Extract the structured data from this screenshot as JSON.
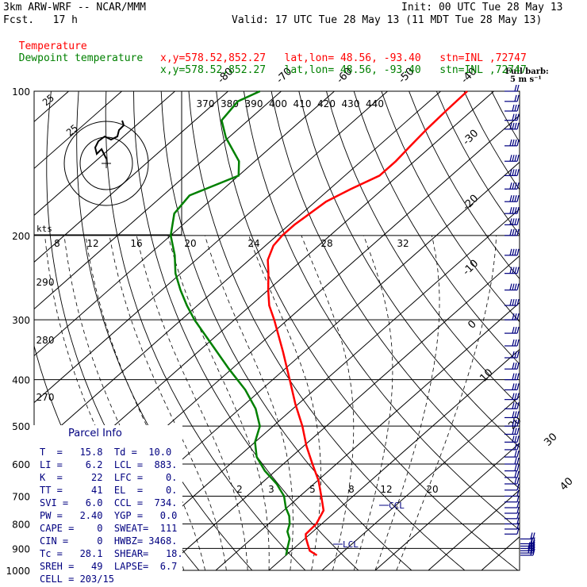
{
  "header": {
    "model": "3km ARW-WRF -- NCAR/MMM",
    "init": "Init: 00 UTC Tue 28 May 13",
    "fcst": "Fcst.   17 h",
    "valid": "Valid: 17 UTC Tue 28 May 13 (11 MDT Tue 28 May 13)",
    "temp_line": {
      "label": "Temperature",
      "info": "x,y=578.52,852.27   lat,lon= 48.56, -93.40   stn=INL ,72747"
    },
    "dew_line": {
      "label": "Dewpoint temperature",
      "info": "x,y=578.52,852.27   lat,lon= 48.56, -93.40   stn=INL ,72747"
    }
  },
  "colors": {
    "temperature": "#ff0000",
    "dewpoint": "#008000",
    "barbs": "#000080",
    "grid": "#000000",
    "lcl": "#000080"
  },
  "barb_legend": {
    "line1": "Full barb:",
    "line2": "5 m s⁻¹"
  },
  "parcel_info": {
    "title": "Parcel Info",
    "rows": [
      "T  =   15.8  Td =  10.0",
      "LI =    6.2  LCL =  883.",
      "K  =     22  LFC =    0.",
      "TT =     41  EL  =    0.",
      "SVI =   6.0  CCL =  734.",
      "PW =   2.40  YGP =   0.0",
      "CAPE =    0  SWEAT=  111",
      "CIN =     0  HWBZ= 3468.",
      "Tc =   28.1  SHEAR=   18.",
      "SREH =   49  LAPSE=  6.7",
      "CELL = 203/15"
    ]
  },
  "hodograph": {
    "ring_labels": [
      "25",
      "25"
    ],
    "units_label": "kts"
  },
  "annotations": {
    "lcl": "LCL",
    "ccl": "CCL"
  },
  "chart_data": {
    "type": "line",
    "title": "",
    "diagram": "skew-T log-p",
    "y_axis": {
      "label": "",
      "scale": "log",
      "ticks": [
        100,
        200,
        300,
        400,
        500,
        600,
        700,
        800,
        900,
        1000
      ],
      "units": "hPa"
    },
    "isotherm_labels": [
      -80,
      -70,
      -60,
      -50,
      -40,
      -30,
      -20,
      -10,
      0,
      10,
      20,
      30,
      40
    ],
    "theta_labels": [
      370,
      380,
      390,
      400,
      410,
      420,
      430,
      440
    ],
    "theta_labels_lower": [
      290,
      280,
      270
    ],
    "mixing_ratio_labels": [
      8,
      12,
      16,
      20,
      24,
      28,
      32
    ],
    "mixing_ratio_labels_lower": [
      2,
      3,
      5,
      8,
      12,
      20
    ],
    "series": [
      {
        "name": "Temperature",
        "pressure": [
          930,
          910,
          880,
          855,
          840,
          800,
          750,
          700,
          650,
          600,
          550,
          500,
          450,
          400,
          350,
          300,
          280,
          260,
          240,
          225,
          210,
          200,
          190,
          170,
          160,
          150,
          140,
          130,
          120,
          110,
          100
        ],
        "temperature": [
          15.8,
          13.5,
          11.6,
          10.0,
          9.2,
          9.0,
          7.5,
          4.0,
          0.2,
          -4.5,
          -9.5,
          -14.5,
          -20.5,
          -26.8,
          -34.0,
          -42.5,
          -46.5,
          -50.0,
          -53.5,
          -56.5,
          -58.5,
          -59.0,
          -59.0,
          -58.0,
          -56.0,
          -53.5,
          -53.5,
          -54.0,
          -54.5,
          -54.8,
          -55.0
        ]
      },
      {
        "name": "Dewpoint temperature",
        "pressure": [
          930,
          900,
          860,
          830,
          800,
          770,
          740,
          700,
          660,
          620,
          580,
          540,
          500,
          460,
          420,
          380,
          340,
          300,
          280,
          260,
          240,
          220,
          200,
          180,
          165,
          150,
          140,
          125,
          115,
          105,
          100
        ],
        "temperature": [
          10.0,
          8.8,
          7.2,
          5.2,
          4.0,
          2.2,
          -0.2,
          -3.0,
          -7.0,
          -12.0,
          -16.5,
          -20.0,
          -22.5,
          -27.0,
          -33.0,
          -40.5,
          -48.5,
          -57.5,
          -62.0,
          -66.5,
          -71.0,
          -75.0,
          -80.0,
          -84.0,
          -85.0,
          -80.0,
          -83.0,
          -90.5,
          -95.0,
          -96.0,
          -94.0
        ]
      }
    ],
    "wind_barbs": {
      "pressure": [
        930,
        920,
        910,
        900,
        890,
        880,
        860,
        840,
        820,
        800,
        780,
        760,
        740,
        720,
        700,
        680,
        660,
        640,
        620,
        600,
        580,
        560,
        540,
        520,
        500,
        480,
        460,
        440,
        420,
        400,
        380,
        360,
        340,
        320,
        300,
        280,
        260,
        240,
        220,
        200,
        190,
        180,
        170,
        160,
        150,
        140,
        130,
        120,
        115,
        110,
        105,
        100
      ],
      "speed_ms": [
        12,
        14,
        15,
        15,
        12,
        10,
        8,
        6,
        5,
        5,
        5,
        5,
        5,
        5,
        5,
        5,
        10,
        10,
        10,
        10,
        10,
        10,
        15,
        15,
        15,
        15,
        15,
        15,
        15,
        15,
        15,
        15,
        15,
        15,
        15,
        20,
        20,
        20,
        20,
        20,
        20,
        20,
        20,
        20,
        20,
        20,
        20,
        20,
        15,
        15,
        10,
        10
      ]
    }
  }
}
